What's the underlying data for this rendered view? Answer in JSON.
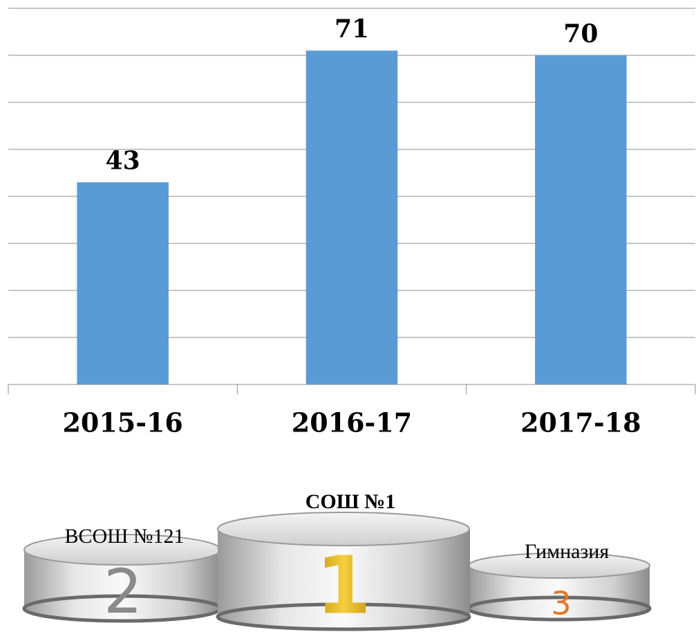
{
  "chart_data": {
    "type": "bar",
    "categories": [
      "2015-16",
      "2016-17",
      "2017-18"
    ],
    "values": [
      43,
      71,
      70
    ],
    "color": "#5b9bd5",
    "ylim": [
      0,
      80
    ],
    "yticks": [
      0,
      10,
      20,
      30,
      40,
      50,
      60,
      70,
      80
    ],
    "grid": true
  },
  "podium": [
    {
      "place": "2",
      "label": "ВСОШ №121"
    },
    {
      "place": "1",
      "label": "СОШ №1"
    },
    {
      "place": "3",
      "label": "Гимназия"
    }
  ]
}
